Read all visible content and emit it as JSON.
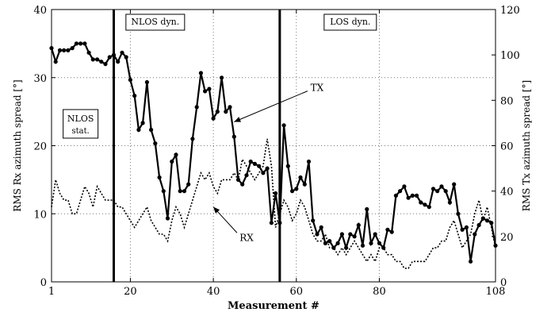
{
  "chart_data": {
    "type": "line",
    "title": "",
    "xlabel": "Measurement #",
    "ylabel": "RMS Rx azimuth spread [°]",
    "ylabel_right": "RMS Tx azimuth spread [°]",
    "xlim": [
      1,
      108
    ],
    "ylim": [
      0,
      40
    ],
    "ylim_right": [
      0,
      120
    ],
    "xticks": [
      "1",
      "20",
      "40",
      "60",
      "80",
      "108"
    ],
    "xtick_values": [
      1,
      20,
      40,
      60,
      80,
      108
    ],
    "yticks_left": [
      "0",
      "10",
      "20",
      "30",
      "40"
    ],
    "ytick_values_left": [
      0,
      10,
      20,
      30,
      40
    ],
    "yticks_right": [
      "0",
      "20",
      "40",
      "60",
      "80",
      "100",
      "120"
    ],
    "ytick_values_right": [
      0,
      20,
      40,
      60,
      80,
      100,
      120
    ],
    "grid": true,
    "dividers": [
      16,
      56
    ],
    "regions": [
      {
        "label": "NLOS dyn.",
        "x": 26
      },
      {
        "label": "LOS dyn.",
        "x": 73
      }
    ],
    "region_stat": {
      "line1": "NLOS",
      "line2": "stat.",
      "x": 8
    },
    "annotations": [
      {
        "text": "TX",
        "x": 65,
        "y": 28.5,
        "to_x": 45,
        "to_y": 23.5
      },
      {
        "text": "RX",
        "x": 48,
        "y": 6.5,
        "to_x": 40,
        "to_y": 11
      }
    ],
    "series": [
      {
        "name": "TX",
        "axis": "right",
        "style": "solid-markers",
        "x": [
          1,
          2,
          3,
          4,
          5,
          6,
          7,
          8,
          9,
          10,
          11,
          12,
          13,
          14,
          15,
          16,
          17,
          18,
          19,
          20,
          21,
          22,
          23,
          24,
          25,
          26,
          27,
          28,
          29,
          30,
          31,
          32,
          33,
          34,
          35,
          36,
          37,
          38,
          39,
          40,
          41,
          42,
          43,
          44,
          45,
          46,
          47,
          48,
          49,
          50,
          51,
          52,
          53,
          54,
          55,
          56,
          57,
          58,
          59,
          60,
          61,
          62,
          63,
          64,
          65,
          66,
          67,
          68,
          69,
          70,
          71,
          72,
          73,
          74,
          75,
          76,
          77,
          78,
          79,
          80,
          81,
          82,
          83,
          84,
          85,
          86,
          87,
          88,
          89,
          90,
          91,
          92,
          93,
          94,
          95,
          96,
          97,
          98,
          99,
          100,
          101,
          102,
          103,
          104,
          105,
          106,
          107,
          108
        ],
        "values": [
          103,
          97,
          102,
          102,
          102,
          103,
          105,
          105,
          105,
          101,
          98,
          98,
          97,
          96,
          99,
          100,
          97,
          101,
          99,
          89,
          82,
          67,
          70,
          88,
          67,
          61,
          46,
          40,
          28,
          53,
          56,
          40,
          40,
          43,
          63,
          77,
          92,
          84,
          85,
          72,
          75,
          90,
          75,
          77,
          64,
          45,
          43,
          47,
          53,
          52,
          51,
          48,
          50,
          26,
          39,
          26,
          69,
          51,
          40,
          41,
          46,
          43,
          53,
          27,
          21,
          24,
          17,
          18,
          15,
          17,
          21,
          15,
          21,
          20,
          25,
          16,
          32,
          17,
          21,
          17,
          15,
          23,
          22,
          38,
          40,
          42,
          37,
          38,
          38,
          35,
          34,
          33,
          41,
          40,
          42,
          40,
          35,
          43,
          30,
          23,
          24,
          9,
          21,
          25,
          28,
          27,
          26,
          16
        ]
      },
      {
        "name": "RX",
        "axis": "left",
        "style": "dotted",
        "x": [
          1,
          2,
          3,
          4,
          5,
          6,
          7,
          8,
          9,
          10,
          11,
          12,
          13,
          14,
          15,
          16,
          17,
          18,
          19,
          20,
          21,
          22,
          23,
          24,
          25,
          26,
          27,
          28,
          29,
          30,
          31,
          32,
          33,
          34,
          35,
          36,
          37,
          38,
          39,
          40,
          41,
          42,
          43,
          44,
          45,
          46,
          47,
          48,
          49,
          50,
          51,
          52,
          53,
          54,
          55,
          56,
          57,
          58,
          59,
          60,
          61,
          62,
          63,
          64,
          65,
          66,
          67,
          68,
          69,
          70,
          71,
          72,
          73,
          74,
          75,
          76,
          77,
          78,
          79,
          80,
          81,
          82,
          83,
          84,
          85,
          86,
          87,
          88,
          89,
          90,
          91,
          92,
          93,
          94,
          95,
          96,
          97,
          98,
          99,
          100,
          101,
          102,
          103,
          104,
          105,
          106,
          107,
          108
        ],
        "values": [
          11,
          15,
          13,
          12,
          12,
          10,
          10,
          12,
          14,
          13,
          11,
          14,
          13,
          12,
          12,
          12,
          11,
          11,
          10,
          9,
          8,
          9,
          10,
          11,
          9,
          8,
          7,
          7,
          6,
          9,
          11,
          10,
          8,
          10,
          12,
          14,
          16,
          15,
          16,
          14,
          13,
          15,
          15,
          15,
          16,
          15,
          18,
          17,
          16,
          15,
          16,
          17,
          21,
          17,
          8,
          10,
          12,
          11,
          9,
          10,
          12,
          11,
          9,
          7,
          6,
          6,
          7,
          5,
          5,
          4,
          5,
          4,
          5,
          6,
          5,
          4,
          3,
          4,
          3,
          5,
          5,
          4,
          4,
          3,
          3,
          2,
          2,
          3,
          3,
          3,
          3,
          4,
          5,
          5,
          6,
          6,
          8,
          9,
          7,
          5,
          6,
          7,
          10,
          12,
          9,
          11,
          8,
          5
        ]
      }
    ]
  }
}
